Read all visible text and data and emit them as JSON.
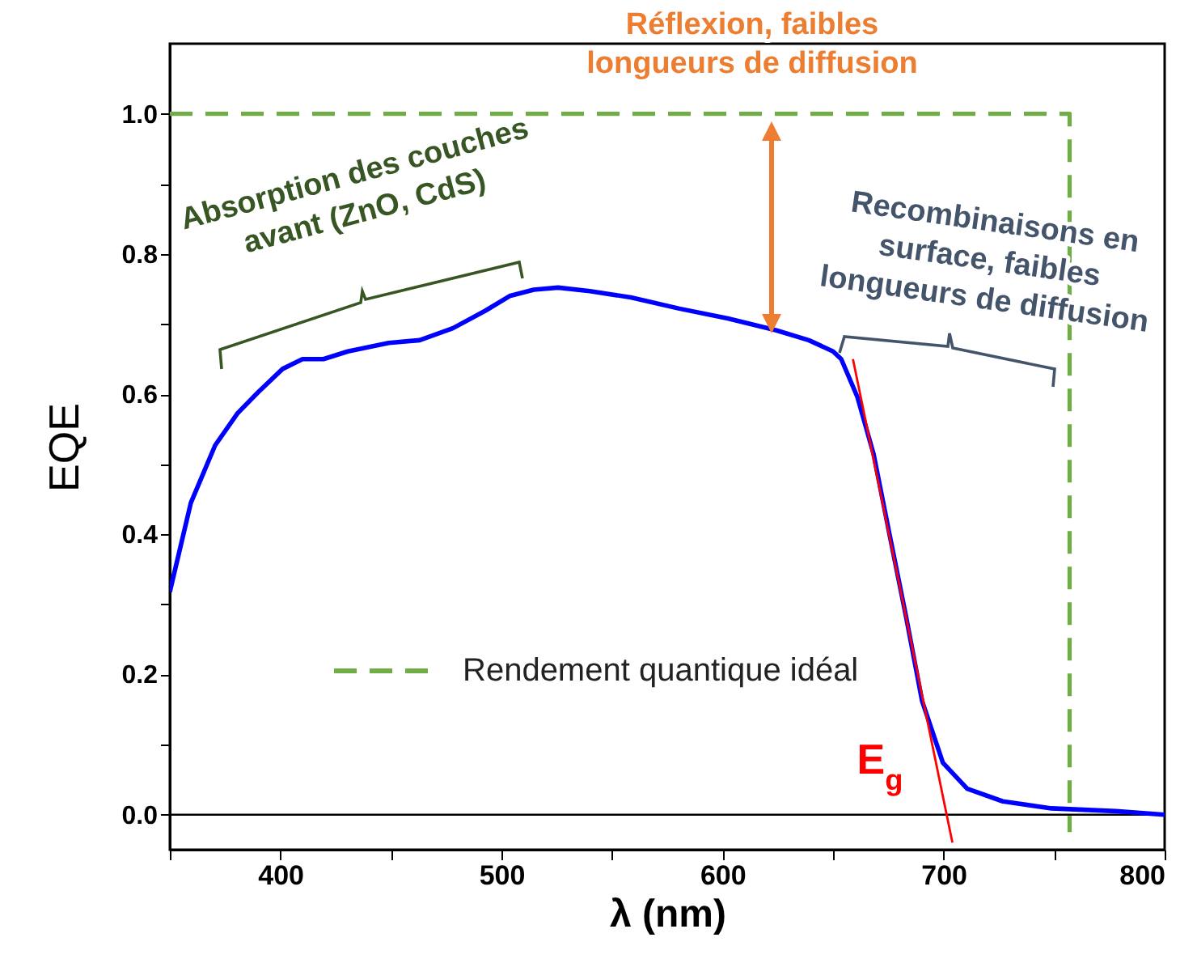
{
  "chart_data": {
    "type": "line",
    "xlabel": "λ (nm)",
    "ylabel": "EQE",
    "xlim": [
      350,
      800
    ],
    "ylim": [
      -0.05,
      1.1
    ],
    "xticks": [
      {
        "value": 350,
        "label": null
      },
      400,
      {
        "value": 450,
        "label": null
      },
      500,
      {
        "value": 550,
        "label": null
      },
      600,
      {
        "value": 650,
        "label": null
      },
      700,
      {
        "value": 750,
        "label": null
      },
      800
    ],
    "yticks": [
      {
        "value": 0,
        "label": "0.0"
      },
      {
        "value": 0.1,
        "label": null
      },
      {
        "value": 0.2,
        "label": "0.2"
      },
      {
        "value": 0.3,
        "label": null
      },
      {
        "value": 0.4,
        "label": "0.4"
      },
      {
        "value": 0.5,
        "label": null
      },
      {
        "value": 0.6,
        "label": "0.6"
      },
      {
        "value": 0.7,
        "label": null
      },
      {
        "value": 0.8,
        "label": "0.8"
      },
      {
        "value": 0.9,
        "label": null
      },
      {
        "value": 1.0,
        "label": "1.0"
      }
    ],
    "series": [
      {
        "color": "#0000ff",
        "line_style": "solid",
        "x": [
          350,
          359.5,
          370.5,
          380.7,
          390,
          401,
          410,
          419.5,
          430.5,
          449,
          463,
          478,
          492.7,
          503.7,
          514.6,
          525.6,
          540,
          558.5,
          580.5,
          602.4,
          624.4,
          639,
          650,
          653.7,
          661,
          668.3,
          675.6,
          683,
          690.3,
          699.7,
          710.7,
          726.8,
          748.8,
          778,
          800
        ],
        "values": [
          0.318,
          0.445,
          0.527,
          0.573,
          0.603,
          0.636,
          0.65,
          0.65,
          0.661,
          0.673,
          0.677,
          0.694,
          0.719,
          0.74,
          0.749,
          0.752,
          0.747,
          0.738,
          0.722,
          0.708,
          0.691,
          0.677,
          0.661,
          0.65,
          0.596,
          0.515,
          0.399,
          0.283,
          0.162,
          0.074,
          0.037,
          0.019,
          0.009,
          0.005,
          0.0
        ]
      },
      {
        "name": "Rendement quantique idéal",
        "color": "#70ad47",
        "line_style": "dashed",
        "x": [
          350,
          757,
          757
        ],
        "values": [
          1.0,
          1.0,
          -0.025
        ]
      },
      {
        "color": "#ff0000",
        "line_style": "solid",
        "x": [
          659,
          704
        ],
        "values": [
          0.65,
          -0.04
        ]
      }
    ],
    "ref_lines": [
      {
        "axis": "y",
        "value": 0,
        "color": "#000000"
      }
    ],
    "legend": "bottom left",
    "annotations": [
      "Réflexion, faibles longueurs de diffusion",
      "Absorption des couches avant (ZnO, CdS)",
      "Recombinaisons en surface, faibles longueurs de diffusion",
      "E$_{g}$"
    ]
  }
}
